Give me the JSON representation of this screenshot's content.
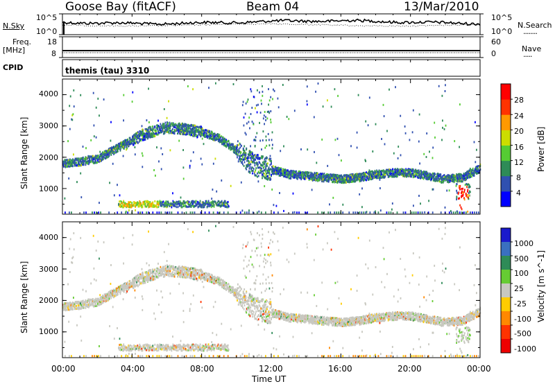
{
  "header": {
    "station": "Goose Bay (fitACF)",
    "beam": "Beam 04",
    "date": "13/Mar/2010"
  },
  "top_panels": {
    "nsky_label": "N.Sky",
    "nsky_ticks": [
      "10^5",
      "10^0"
    ],
    "nsearch_label": "N.Search",
    "nsearch_ticks": [
      "10^5",
      "10^0"
    ],
    "freq_label": "Freq.",
    "freq_unit": "[MHz]",
    "freq_ticks": [
      "18",
      "8"
    ],
    "nave_label": "Nave",
    "nave_ticks": [
      "60",
      "0"
    ],
    "cpid_label": "CPID",
    "cpid_value": "themis (tau) 3310"
  },
  "x_axis": {
    "ticks": [
      "00:00",
      "04:00",
      "08:00",
      "12:00",
      "16:00",
      "20:00",
      "00:00"
    ],
    "label": "Time UT"
  },
  "power_panel": {
    "ylabel": "Slant Range [km]",
    "yticks": [
      "4000",
      "3000",
      "2000",
      "1000"
    ],
    "colorbar_label": "Power [dB]",
    "colorbar_ticks": [
      "28",
      "24",
      "20",
      "16",
      "12",
      "8",
      "4"
    ],
    "colors": [
      "#0000ff",
      "#3050b0",
      "#2e8b57",
      "#55cc33",
      "#ccdd00",
      "#ff9900",
      "#ff3300",
      "#ff0000"
    ]
  },
  "velocity_panel": {
    "ylabel": "Slant Range [km]",
    "yticks": [
      "4000",
      "3000",
      "2000",
      "1000"
    ],
    "colorbar_label": "Velocity [m s^-1]",
    "colorbar_ticks": [
      "1000",
      "500",
      "100",
      "25",
      "-25",
      "-100",
      "-500",
      "-1000"
    ],
    "colors": [
      "#1a1acc",
      "#3a70c0",
      "#2e8b57",
      "#66cc33",
      "#c8c8c0",
      "#ffcc00",
      "#ff8800",
      "#ff3300",
      "#ee0000"
    ]
  },
  "chart_data": {
    "type": "heatmap",
    "title": "Goose Bay (fitACF)   Beam 04   13/Mar/2010",
    "xlabel": "Time UT",
    "ylabel": "Slant Range [km]",
    "xlim": [
      0,
      24
    ],
    "ylim": [
      180,
      4500
    ],
    "x_tick_hours": [
      0,
      4,
      8,
      12,
      16,
      20,
      24
    ],
    "y_ticks_km": [
      1000,
      2000,
      3000,
      4000
    ],
    "power_colorbar_range_db": [
      0,
      32
    ],
    "velocity_colorbar_levels": [
      -1000,
      -500,
      -100,
      -25,
      25,
      100,
      500,
      1000
    ],
    "main_echo_band": {
      "time_hours": [
        0,
        1,
        2,
        3,
        4,
        5,
        6,
        7,
        8,
        9,
        10,
        10.5,
        11,
        12,
        13,
        14,
        15,
        16,
        17,
        18,
        19,
        20,
        21,
        22,
        23,
        24
      ],
      "slant_range_km": [
        1800,
        1850,
        1950,
        2250,
        2550,
        2800,
        2950,
        2900,
        2800,
        2600,
        2200,
        1950,
        1750,
        1600,
        1450,
        1400,
        1350,
        1300,
        1350,
        1450,
        1500,
        1500,
        1400,
        1300,
        1350,
        1650
      ]
    },
    "near_range_echoes": {
      "time_hours_range": [
        3.2,
        9.5
      ],
      "slant_range_km": [
        400,
        600
      ]
    }
  }
}
